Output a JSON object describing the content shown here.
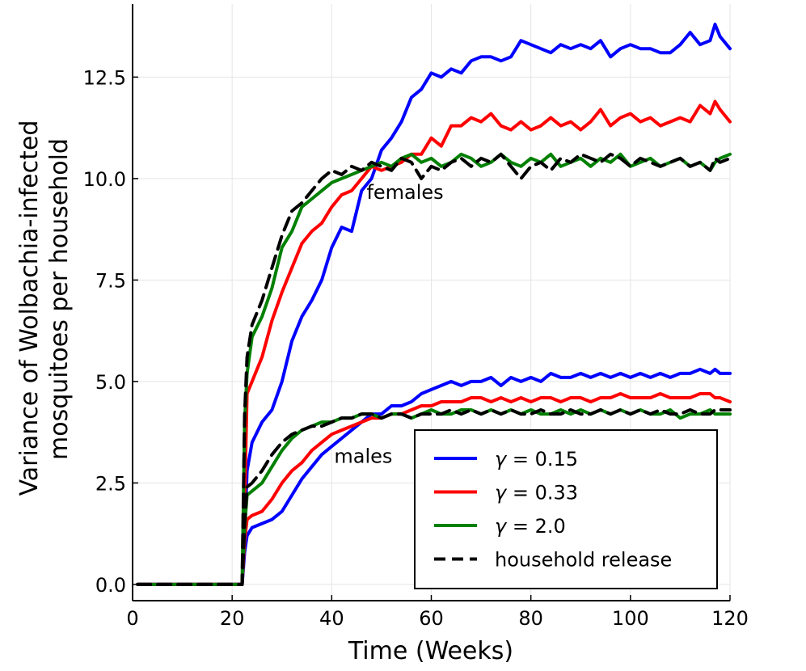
{
  "chart_data": {
    "type": "line",
    "title": "",
    "xlabel": "Time (Weeks)",
    "ylabel_lines": [
      "Variance of Wolbachia-infected",
      "mosquitoes per household"
    ],
    "xlim": [
      0,
      120
    ],
    "ylim": [
      -0.4,
      14.3
    ],
    "xticks": [
      0,
      20,
      40,
      60,
      80,
      100,
      120
    ],
    "xtick_labels": [
      "0",
      "20",
      "40",
      "60",
      "80",
      "100",
      "120"
    ],
    "yticks": [
      0,
      2.5,
      5,
      7.5,
      10,
      12.5
    ],
    "ytick_labels": [
      "0.0",
      "2.5",
      "5.0",
      "7.5",
      "10.0",
      "12.5"
    ],
    "grid": true,
    "legend_position": "bottom-right",
    "annotations": [
      {
        "text": "females",
        "x": 47,
        "y": 9.5
      },
      {
        "text": "males",
        "x": 40.5,
        "y": 3.0
      }
    ],
    "series": [
      {
        "name": "γ = 0.15",
        "greek": "γ",
        "value_label": " = 0.15",
        "color": "#0000ff",
        "dash": "solid",
        "group": "females",
        "x": [
          1,
          22,
          22.5,
          23,
          24,
          26,
          28,
          30,
          32,
          34,
          36,
          38,
          40,
          42,
          44,
          46,
          48,
          50,
          52,
          54,
          56,
          58,
          60,
          62,
          64,
          66,
          68,
          70,
          72,
          74,
          76,
          78,
          80,
          82,
          84,
          86,
          88,
          90,
          92,
          94,
          96,
          98,
          100,
          102,
          104,
          106,
          108,
          110,
          112,
          114,
          116,
          117,
          118,
          120
        ],
        "y": [
          0,
          0,
          1.2,
          2.8,
          3.5,
          4.0,
          4.3,
          5.0,
          6.0,
          6.6,
          7.0,
          7.5,
          8.3,
          8.8,
          8.7,
          9.7,
          10.0,
          10.7,
          11.0,
          11.4,
          12.0,
          12.2,
          12.6,
          12.5,
          12.7,
          12.6,
          12.9,
          13.0,
          13.0,
          12.9,
          13.0,
          13.4,
          13.3,
          13.2,
          13.1,
          13.3,
          13.2,
          13.3,
          13.2,
          13.4,
          13.0,
          13.2,
          13.3,
          13.2,
          13.2,
          13.1,
          13.1,
          13.3,
          13.6,
          13.3,
          13.4,
          13.8,
          13.5,
          13.2
        ]
      },
      {
        "name": "γ = 0.33",
        "greek": "γ",
        "value_label": " = 0.33",
        "color": "#ff0000",
        "dash": "solid",
        "group": "females",
        "x": [
          1,
          22,
          22.5,
          23,
          24,
          26,
          28,
          30,
          32,
          34,
          36,
          38,
          40,
          42,
          44,
          46,
          48,
          50,
          52,
          54,
          56,
          58,
          60,
          62,
          64,
          66,
          68,
          70,
          72,
          74,
          76,
          78,
          80,
          82,
          84,
          86,
          88,
          90,
          92,
          94,
          96,
          98,
          100,
          102,
          104,
          106,
          108,
          110,
          112,
          114,
          116,
          117,
          118,
          120
        ],
        "y": [
          0,
          0,
          2.0,
          4.7,
          5.0,
          5.6,
          6.5,
          7.2,
          7.8,
          8.4,
          8.7,
          8.9,
          9.3,
          9.6,
          9.7,
          10.0,
          10.3,
          10.2,
          10.3,
          10.4,
          10.6,
          10.6,
          11.0,
          10.8,
          11.3,
          11.3,
          11.5,
          11.4,
          11.6,
          11.3,
          11.2,
          11.4,
          11.2,
          11.3,
          11.5,
          11.3,
          11.4,
          11.2,
          11.4,
          11.7,
          11.3,
          11.5,
          11.6,
          11.4,
          11.5,
          11.3,
          11.4,
          11.5,
          11.4,
          11.8,
          11.6,
          11.9,
          11.7,
          11.4
        ]
      },
      {
        "name": "γ = 2.0",
        "greek": "γ",
        "value_label": " = 2.0",
        "color": "#008000",
        "dash": "solid",
        "group": "females",
        "x": [
          1,
          22,
          22.5,
          23,
          24,
          26,
          28,
          30,
          32,
          34,
          36,
          38,
          40,
          42,
          44,
          46,
          48,
          50,
          52,
          54,
          56,
          58,
          60,
          62,
          64,
          66,
          68,
          70,
          72,
          74,
          76,
          78,
          80,
          82,
          84,
          86,
          88,
          90,
          92,
          94,
          96,
          98,
          100,
          102,
          104,
          106,
          108,
          110,
          112,
          114,
          116,
          117,
          118,
          120
        ],
        "y": [
          0,
          0,
          4.0,
          5.2,
          6.1,
          6.6,
          7.3,
          8.3,
          8.7,
          9.3,
          9.5,
          9.7,
          9.9,
          10.0,
          10.1,
          10.2,
          10.3,
          10.4,
          10.3,
          10.5,
          10.6,
          10.4,
          10.5,
          10.3,
          10.4,
          10.6,
          10.5,
          10.3,
          10.4,
          10.6,
          10.4,
          10.3,
          10.5,
          10.4,
          10.6,
          10.3,
          10.4,
          10.5,
          10.3,
          10.5,
          10.4,
          10.6,
          10.3,
          10.4,
          10.5,
          10.3,
          10.4,
          10.5,
          10.3,
          10.4,
          10.2,
          10.4,
          10.5,
          10.6
        ]
      },
      {
        "name": "household release",
        "greek": "",
        "value_label": "household release",
        "color": "#000000",
        "dash": "dashed",
        "group": "females",
        "x": [
          1,
          22,
          22.5,
          23,
          24,
          26,
          28,
          30,
          32,
          34,
          36,
          38,
          40,
          42,
          44,
          46,
          48,
          50,
          52,
          54,
          56,
          58,
          60,
          62,
          64,
          66,
          68,
          70,
          72,
          74,
          76,
          78,
          80,
          82,
          84,
          86,
          88,
          90,
          92,
          94,
          96,
          98,
          100,
          102,
          104,
          106,
          108,
          110,
          112,
          114,
          116,
          117,
          118,
          120
        ],
        "y": [
          0,
          0,
          4.2,
          5.6,
          6.4,
          7.0,
          7.8,
          8.6,
          9.2,
          9.4,
          9.7,
          10.0,
          10.2,
          10.1,
          10.3,
          10.2,
          10.4,
          10.3,
          10.2,
          10.5,
          10.4,
          10.0,
          10.3,
          10.2,
          10.4,
          10.5,
          10.3,
          10.5,
          10.4,
          10.6,
          10.3,
          10.0,
          10.3,
          10.4,
          10.2,
          10.5,
          10.4,
          10.6,
          10.5,
          10.4,
          10.6,
          10.5,
          10.3,
          10.5,
          10.4,
          10.3,
          10.4,
          10.5,
          10.3,
          10.4,
          10.2,
          10.5,
          10.4,
          10.5
        ]
      },
      {
        "name": "γ = 0.15",
        "greek": "γ",
        "value_label": " = 0.15",
        "color": "#0000ff",
        "dash": "solid",
        "group": "males",
        "in_legend": false,
        "x": [
          1,
          22,
          22.5,
          23,
          24,
          26,
          28,
          30,
          32,
          34,
          36,
          38,
          40,
          42,
          44,
          46,
          48,
          50,
          52,
          54,
          56,
          58,
          60,
          62,
          64,
          66,
          68,
          70,
          72,
          74,
          76,
          78,
          80,
          82,
          84,
          86,
          88,
          90,
          92,
          94,
          96,
          98,
          100,
          102,
          104,
          106,
          108,
          110,
          112,
          114,
          116,
          117,
          118,
          120
        ],
        "y": [
          0,
          0,
          0.8,
          1.2,
          1.4,
          1.5,
          1.6,
          1.8,
          2.2,
          2.6,
          2.9,
          3.2,
          3.4,
          3.6,
          3.8,
          4.0,
          4.2,
          4.2,
          4.4,
          4.4,
          4.5,
          4.7,
          4.8,
          4.9,
          5.0,
          4.9,
          5.0,
          5.0,
          5.1,
          4.9,
          5.1,
          5.0,
          5.1,
          5.0,
          5.2,
          5.1,
          5.1,
          5.2,
          5.1,
          5.2,
          5.1,
          5.2,
          5.1,
          5.2,
          5.1,
          5.2,
          5.1,
          5.2,
          5.2,
          5.3,
          5.2,
          5.3,
          5.2,
          5.2
        ]
      },
      {
        "name": "γ = 0.33",
        "greek": "γ",
        "value_label": " = 0.33",
        "color": "#ff0000",
        "dash": "solid",
        "group": "males",
        "in_legend": false,
        "x": [
          1,
          22,
          22.5,
          23,
          24,
          26,
          28,
          30,
          32,
          34,
          36,
          38,
          40,
          42,
          44,
          46,
          48,
          50,
          52,
          54,
          56,
          58,
          60,
          62,
          64,
          66,
          68,
          70,
          72,
          74,
          76,
          78,
          80,
          82,
          84,
          86,
          88,
          90,
          92,
          94,
          96,
          98,
          100,
          102,
          104,
          106,
          108,
          110,
          112,
          114,
          116,
          117,
          118,
          120
        ],
        "y": [
          0,
          0,
          1.1,
          1.6,
          1.7,
          1.8,
          2.1,
          2.5,
          2.8,
          3.0,
          3.3,
          3.5,
          3.7,
          3.8,
          3.9,
          4.0,
          4.1,
          4.1,
          4.2,
          4.2,
          4.3,
          4.4,
          4.4,
          4.5,
          4.5,
          4.5,
          4.6,
          4.6,
          4.5,
          4.6,
          4.5,
          4.6,
          4.5,
          4.6,
          4.6,
          4.5,
          4.6,
          4.6,
          4.5,
          4.6,
          4.6,
          4.7,
          4.6,
          4.6,
          4.6,
          4.7,
          4.6,
          4.6,
          4.6,
          4.7,
          4.7,
          4.6,
          4.6,
          4.5
        ]
      },
      {
        "name": "γ = 2.0",
        "greek": "γ",
        "value_label": " = 2.0",
        "color": "#008000",
        "dash": "solid",
        "group": "males",
        "in_legend": false,
        "x": [
          1,
          22,
          22.5,
          23,
          24,
          26,
          28,
          30,
          32,
          34,
          36,
          38,
          40,
          42,
          44,
          46,
          48,
          50,
          52,
          54,
          56,
          58,
          60,
          62,
          64,
          66,
          68,
          70,
          72,
          74,
          76,
          78,
          80,
          82,
          84,
          86,
          88,
          90,
          92,
          94,
          96,
          98,
          100,
          102,
          104,
          106,
          108,
          110,
          112,
          114,
          116,
          117,
          118,
          120
        ],
        "y": [
          0,
          0,
          1.4,
          2.2,
          2.3,
          2.5,
          2.9,
          3.3,
          3.6,
          3.8,
          3.9,
          4.0,
          4.0,
          4.1,
          4.1,
          4.2,
          4.2,
          4.1,
          4.2,
          4.2,
          4.1,
          4.2,
          4.3,
          4.2,
          4.2,
          4.3,
          4.3,
          4.2,
          4.3,
          4.2,
          4.3,
          4.2,
          4.3,
          4.2,
          4.2,
          4.3,
          4.2,
          4.3,
          4.2,
          4.3,
          4.2,
          4.3,
          4.2,
          4.3,
          4.2,
          4.2,
          4.3,
          4.1,
          4.2,
          4.2,
          4.3,
          4.2,
          4.2,
          4.2
        ]
      },
      {
        "name": "household release",
        "greek": "",
        "value_label": "household release",
        "color": "#000000",
        "dash": "dashed",
        "group": "males",
        "in_legend": false,
        "x": [
          1,
          22,
          22.5,
          23,
          24,
          26,
          28,
          30,
          32,
          34,
          36,
          38,
          40,
          42,
          44,
          46,
          48,
          50,
          52,
          54,
          56,
          58,
          60,
          62,
          64,
          66,
          68,
          70,
          72,
          74,
          76,
          78,
          80,
          82,
          84,
          86,
          88,
          90,
          92,
          94,
          96,
          98,
          100,
          102,
          104,
          106,
          108,
          110,
          112,
          114,
          116,
          117,
          118,
          120
        ],
        "y": [
          0,
          0,
          1.5,
          2.4,
          2.5,
          2.8,
          3.2,
          3.5,
          3.7,
          3.8,
          3.9,
          3.9,
          4.0,
          4.1,
          4.1,
          4.2,
          4.2,
          4.1,
          4.2,
          4.2,
          4.1,
          4.2,
          4.2,
          4.2,
          4.3,
          4.2,
          4.3,
          4.2,
          4.3,
          4.2,
          4.3,
          4.2,
          4.2,
          4.3,
          4.2,
          4.2,
          4.3,
          4.2,
          4.2,
          4.3,
          4.2,
          4.3,
          4.2,
          4.3,
          4.2,
          4.3,
          4.2,
          4.2,
          4.3,
          4.2,
          4.2,
          4.3,
          4.3,
          4.3
        ]
      }
    ]
  }
}
